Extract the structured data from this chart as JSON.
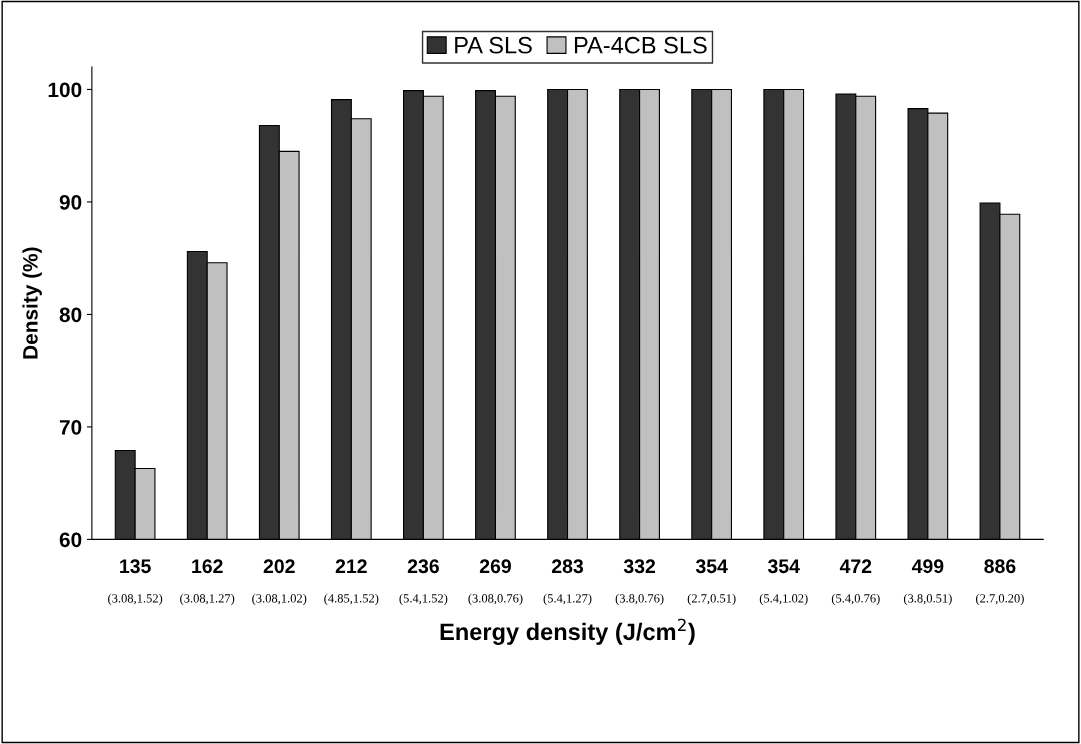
{
  "chart_data": {
    "type": "bar",
    "categories": [
      "135\n(3.08,1.52)",
      "162\n(3.08,1.27)",
      "202\n(3.08,1.02)",
      "212\n(4.85,1.52)",
      "236\n(5.4,1.52)",
      "269\n(3.08,0.76)",
      "283\n(5.4,1.27)",
      "332\n(3.8,0.76)",
      "354\n(2.7,0.51)",
      "354\n(5.4,1.02)",
      "472\n(5.4,0.76)",
      "499\n(3.8,0.51)",
      "886\n(2.7,0.20)"
    ],
    "series": [
      {
        "name": "PA SLS",
        "color": "#333333",
        "values": [
          67.9,
          85.6,
          96.8,
          99.1,
          99.9,
          99.9,
          100,
          100,
          100,
          100,
          99.6,
          98.3,
          89.9
        ]
      },
      {
        "name": "PA-4CB SLS",
        "color": "#c0c0c0",
        "values": [
          66.3,
          84.6,
          94.5,
          97.4,
          99.4,
          99.4,
          100,
          100,
          100,
          100,
          99.4,
          97.9,
          88.9
        ]
      }
    ],
    "xlabel": "Energy density (J/cm$^{2}$)",
    "ylabel": "Density (%)",
    "ylim": [
      60,
      102
    ],
    "yticks": [
      60,
      70,
      80,
      90,
      100
    ],
    "grid": false,
    "legend": "top"
  }
}
